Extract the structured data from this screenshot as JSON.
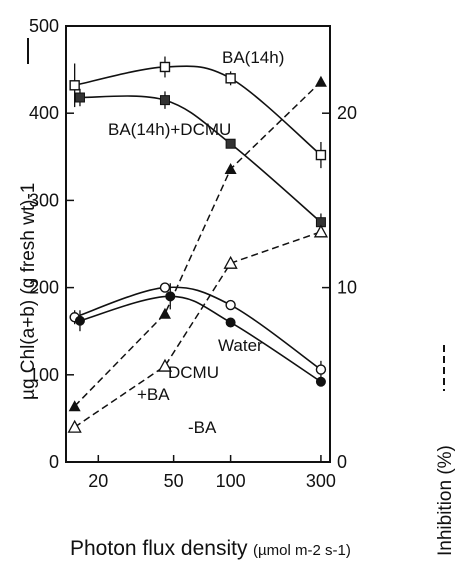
{
  "chart_data": {
    "type": "line",
    "x_axis": {
      "label_main": "Photon flux density",
      "label_unit": "(µmol m-2 s-1)",
      "scale": "log",
      "ticks": [
        20,
        50,
        100,
        300
      ],
      "tick_labels": [
        "20",
        "50",
        "100",
        "300"
      ],
      "range": [
        13.5,
        335
      ]
    },
    "y_axis_left": {
      "label": "µg Chl(a+b) (g fresh wt)-1",
      "ticks": [
        0,
        100,
        200,
        300,
        400,
        500
      ],
      "tick_labels": [
        "0",
        "100",
        "200",
        "300",
        "400",
        "500"
      ],
      "range": [
        0,
        500
      ]
    },
    "y_axis_right": {
      "label": "Inhibition (%)",
      "ticks": [
        0,
        10,
        20
      ],
      "tick_labels": [
        "0",
        "10",
        "20"
      ],
      "range": [
        0,
        25
      ]
    },
    "series": [
      {
        "name": "BA(14h)",
        "axis": "left",
        "marker": "square-open",
        "line": "solid",
        "x": [
          15,
          45,
          100,
          300
        ],
        "y": [
          432,
          453,
          440,
          352
        ],
        "err": [
          25,
          12,
          8,
          15
        ]
      },
      {
        "name": "BA(14h)+DCMU",
        "axis": "left",
        "marker": "square-filled",
        "line": "solid",
        "x": [
          16,
          45,
          100,
          300
        ],
        "y": [
          418,
          415,
          365,
          275
        ],
        "err": [
          10,
          10,
          0,
          10
        ]
      },
      {
        "name": "Water",
        "axis": "left",
        "marker": "circle-open",
        "line": "solid",
        "x": [
          15,
          45,
          100,
          300
        ],
        "y": [
          166,
          200,
          180,
          106
        ],
        "err": [
          8,
          0,
          0,
          10
        ]
      },
      {
        "name": "DCMU",
        "axis": "left",
        "marker": "circle-filled",
        "line": "solid",
        "x": [
          16,
          48,
          100,
          300
        ],
        "y": [
          162,
          190,
          160,
          92
        ],
        "err": [
          12,
          15,
          0,
          0
        ]
      },
      {
        "name": "+BA",
        "axis": "right",
        "marker": "triangle-filled",
        "line": "dashed",
        "x": [
          15,
          45,
          100,
          300
        ],
        "y": [
          3.2,
          8.5,
          16.8,
          21.8
        ]
      },
      {
        "name": "-BA",
        "axis": "right",
        "marker": "triangle-open",
        "line": "dashed",
        "x": [
          15,
          45,
          100,
          300
        ],
        "y": [
          2.0,
          5.5,
          11.4,
          13.2
        ]
      }
    ],
    "annotations": [
      "BA(14h)",
      "BA(14h)+DCMU",
      "Water",
      "DCMU",
      "+BA",
      "-BA"
    ],
    "grid": false
  }
}
